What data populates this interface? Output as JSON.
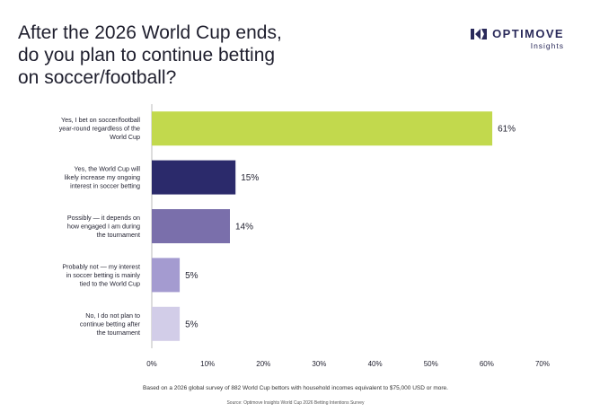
{
  "header": {
    "title_lines": [
      "After the 2026 World Cup ends,",
      "do you plan to continue betting",
      "on soccer/football?"
    ],
    "brand_name": "OPTIMOVE",
    "brand_sub": "Insights",
    "brand_color": "#2a2a5a"
  },
  "footer": {
    "note": "Based on a 2026 global survey of 882 World Cup bettors with household incomes equivalent to $75,000 USD or more.",
    "source": "Source: Optimove Insights World Cup 2026 Betting Intentions Survey"
  },
  "chart_data": {
    "type": "bar",
    "orientation": "horizontal",
    "title": "After the 2026 World Cup ends, do you plan to continue betting on soccer/football?",
    "xlabel": "",
    "ylabel": "",
    "xlim": [
      0,
      70
    ],
    "x_ticks": [
      "0%",
      "10%",
      "20%",
      "30%",
      "40%",
      "50%",
      "60%",
      "70%"
    ],
    "grid": false,
    "legend": "none",
    "categories": [
      [
        "Yes, I bet on soccer/football",
        "year-round regardless of the",
        "World Cup"
      ],
      [
        "Yes, the World Cup will",
        "likely increase my ongoing",
        "interest in soccer betting"
      ],
      [
        "Possibly — it depends on",
        "how engaged I am during",
        "the tournament"
      ],
      [
        "Probably not — my interest",
        "in soccer betting is mainly",
        "tied to the World Cup"
      ],
      [
        "No, I do not plan to",
        "continue betting after",
        "the tournament"
      ]
    ],
    "values": [
      61,
      15,
      14,
      5,
      5
    ],
    "value_labels": [
      "61%",
      "15%",
      "14%",
      "5%",
      "5%"
    ],
    "colors": [
      "#c2d94d",
      "#2b2a6b",
      "#7a6fab",
      "#a49bd0",
      "#d2cde8"
    ]
  }
}
